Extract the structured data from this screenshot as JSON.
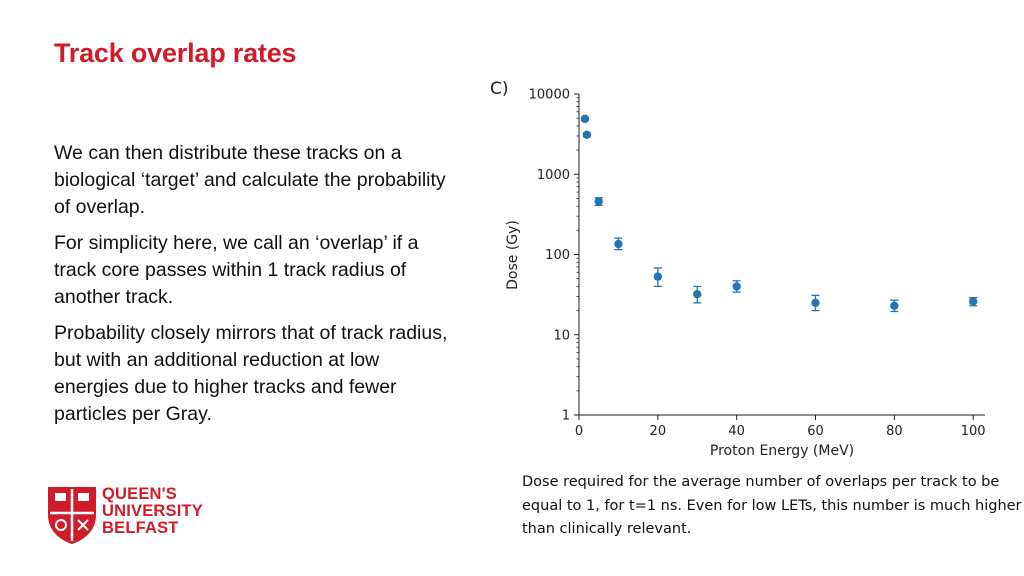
{
  "slide": {
    "title": "Track overlap rates",
    "paragraphs": [
      "We can then distribute these tracks on a biological ‘target’ and calculate the probability of overlap.",
      "For simplicity here, we call an ‘overlap’ if a track core passes within 1 track radius of another track.",
      "Probability closely mirrors that of track radius, but with an additional reduction at low energies due to higher tracks and fewer particles per Gray."
    ],
    "caption": "Dose required for the average number of overlaps per track to be equal to 1, for t=1 ns. Even for low LETs, this number is much higher than clinically relevant."
  },
  "logo": {
    "line1": "QUEEN'S",
    "line2": "UNIVERSITY",
    "line3": "BELFAST",
    "color": "#d01c2a"
  },
  "chart_data": {
    "type": "scatter",
    "panel_label": "C)",
    "xlabel": "Proton Energy (MeV)",
    "ylabel": "Dose (Gy)",
    "xlim": [
      0,
      103
    ],
    "ylim": [
      1,
      10000
    ],
    "yscale": "log",
    "xticks": [
      0,
      20,
      40,
      60,
      80,
      100
    ],
    "yticks": [
      1,
      10,
      100,
      1000,
      10000
    ],
    "ytick_labels": [
      "1",
      "10",
      "100",
      "1000",
      "10000"
    ],
    "marker_color": "#1f77b4",
    "points": [
      {
        "x": 1.5,
        "y": 4900,
        "yerr_low": 4700,
        "yerr_high": 5100
      },
      {
        "x": 2,
        "y": 3100,
        "yerr_low": 2950,
        "yerr_high": 3250
      },
      {
        "x": 5,
        "y": 460,
        "yerr_low": 410,
        "yerr_high": 510
      },
      {
        "x": 10,
        "y": 135,
        "yerr_low": 115,
        "yerr_high": 160
      },
      {
        "x": 20,
        "y": 53,
        "yerr_low": 40,
        "yerr_high": 68
      },
      {
        "x": 30,
        "y": 32,
        "yerr_low": 25,
        "yerr_high": 40
      },
      {
        "x": 40,
        "y": 40,
        "yerr_low": 34,
        "yerr_high": 47
      },
      {
        "x": 60,
        "y": 25,
        "yerr_low": 20,
        "yerr_high": 31
      },
      {
        "x": 80,
        "y": 23,
        "yerr_low": 19.5,
        "yerr_high": 27
      },
      {
        "x": 100,
        "y": 26,
        "yerr_low": 23,
        "yerr_high": 29
      }
    ]
  }
}
